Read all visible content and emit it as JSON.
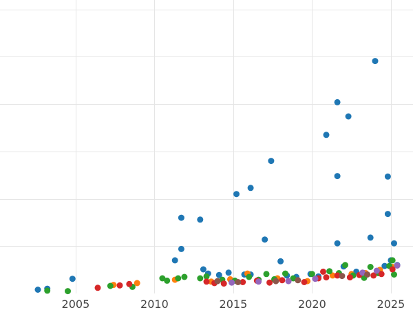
{
  "chart_data": {
    "type": "scatter",
    "title": "",
    "xlabel": "",
    "ylabel": "",
    "xlim": [
      2000.2,
      2026.4
    ],
    "ylim": [
      0,
      62
    ],
    "xticks": [
      2005,
      2010,
      2015,
      2020,
      2025
    ],
    "xtick_labels": [
      "2005",
      "2010",
      "2015",
      "2020",
      "2025"
    ],
    "yticks": [
      10,
      20,
      30,
      40,
      50,
      60
    ],
    "grid": true,
    "legend": false,
    "series": [
      {
        "color": "#1f77b4",
        "points": [
          [
            2002.6,
            0.8
          ],
          [
            2003.2,
            1.0
          ],
          [
            2004.8,
            3.1
          ],
          [
            2011.3,
            7.0
          ],
          [
            2011.7,
            9.4
          ],
          [
            2011.7,
            16.0
          ],
          [
            2012.9,
            15.6
          ],
          [
            2013.1,
            5.1
          ],
          [
            2013.4,
            4.2
          ],
          [
            2014.1,
            3.9
          ],
          [
            2014.7,
            4.4
          ],
          [
            2015.2,
            21.0
          ],
          [
            2015.7,
            4.0
          ],
          [
            2016.1,
            22.3
          ],
          [
            2016.1,
            4.0
          ],
          [
            2017.0,
            11.4
          ],
          [
            2017.4,
            28.0
          ],
          [
            2018.0,
            6.8
          ],
          [
            2018.4,
            3.8
          ],
          [
            2019.0,
            3.5
          ],
          [
            2019.9,
            4.1
          ],
          [
            2020.4,
            3.6
          ],
          [
            2020.9,
            33.5
          ],
          [
            2021.6,
            40.4
          ],
          [
            2021.6,
            24.8
          ],
          [
            2021.6,
            10.6
          ],
          [
            2022.0,
            5.7
          ],
          [
            2022.3,
            37.4
          ],
          [
            2022.8,
            4.6
          ],
          [
            2023.3,
            4.3
          ],
          [
            2023.7,
            11.8
          ],
          [
            2024.0,
            49.1
          ],
          [
            2024.8,
            24.7
          ],
          [
            2024.8,
            16.8
          ],
          [
            2025.2,
            10.6
          ],
          [
            2025.0,
            7.0
          ],
          [
            2024.6,
            5.8
          ],
          [
            2025.4,
            6.0
          ]
        ]
      },
      {
        "color": "#ff7f0e",
        "points": [
          [
            2007.4,
            1.8
          ],
          [
            2008.9,
            2.2
          ],
          [
            2011.3,
            2.9
          ],
          [
            2013.6,
            2.5
          ],
          [
            2014.8,
            3.0
          ],
          [
            2015.9,
            4.2
          ],
          [
            2017.8,
            3.2
          ],
          [
            2019.7,
            2.6
          ],
          [
            2021.3,
            3.8
          ],
          [
            2022.5,
            4.1
          ],
          [
            2023.4,
            4.3
          ],
          [
            2024.3,
            5.0
          ],
          [
            2025.1,
            5.6
          ]
        ]
      },
      {
        "color": "#2ca02c",
        "points": [
          [
            2003.2,
            0.6
          ],
          [
            2004.5,
            0.5
          ],
          [
            2007.2,
            1.6
          ],
          [
            2008.6,
            1.4
          ],
          [
            2010.5,
            3.2
          ],
          [
            2010.8,
            2.7
          ],
          [
            2011.5,
            3.2
          ],
          [
            2011.9,
            3.5
          ],
          [
            2012.9,
            3.2
          ],
          [
            2013.3,
            3.6
          ],
          [
            2014.3,
            2.9
          ],
          [
            2015.1,
            2.7
          ],
          [
            2016.0,
            3.5
          ],
          [
            2016.6,
            2.9
          ],
          [
            2017.1,
            4.1
          ],
          [
            2017.6,
            3.0
          ],
          [
            2018.3,
            4.2
          ],
          [
            2018.8,
            3.2
          ],
          [
            2020.0,
            4.1
          ],
          [
            2021.1,
            4.7
          ],
          [
            2021.7,
            4.3
          ],
          [
            2022.1,
            6.0
          ],
          [
            2022.6,
            3.8
          ],
          [
            2023.3,
            3.3
          ],
          [
            2023.7,
            5.6
          ],
          [
            2024.2,
            4.3
          ],
          [
            2024.9,
            5.8
          ],
          [
            2025.1,
            7.0
          ],
          [
            2025.2,
            4.0
          ]
        ]
      },
      {
        "color": "#d62728",
        "points": [
          [
            2006.4,
            1.2
          ],
          [
            2007.8,
            1.7
          ],
          [
            2008.4,
            2.0
          ],
          [
            2013.3,
            2.5
          ],
          [
            2013.8,
            2.2
          ],
          [
            2014.4,
            2.1
          ],
          [
            2015.6,
            2.4
          ],
          [
            2016.5,
            2.7
          ],
          [
            2017.3,
            2.3
          ],
          [
            2018.1,
            2.8
          ],
          [
            2019.5,
            2.4
          ],
          [
            2020.4,
            3.2
          ],
          [
            2020.7,
            4.6
          ],
          [
            2020.9,
            3.4
          ],
          [
            2021.6,
            3.8
          ],
          [
            2022.4,
            3.4
          ],
          [
            2023.0,
            3.9
          ],
          [
            2023.9,
            3.8
          ],
          [
            2024.4,
            4.1
          ],
          [
            2025.1,
            5.1
          ]
        ]
      },
      {
        "color": "#9467bd",
        "points": [
          [
            2014.9,
            2.3
          ],
          [
            2016.6,
            2.5
          ],
          [
            2018.5,
            2.6
          ],
          [
            2020.2,
            3.1
          ],
          [
            2023.2,
            4.4
          ],
          [
            2024.1,
            4.8
          ],
          [
            2025.4,
            5.9
          ]
        ]
      },
      {
        "color": "#8c564b",
        "points": [
          [
            2014.0,
            2.6
          ],
          [
            2015.3,
            2.4
          ],
          [
            2017.7,
            2.6
          ],
          [
            2019.1,
            2.8
          ],
          [
            2021.9,
            3.7
          ],
          [
            2023.5,
            4.0
          ]
        ]
      }
    ]
  }
}
